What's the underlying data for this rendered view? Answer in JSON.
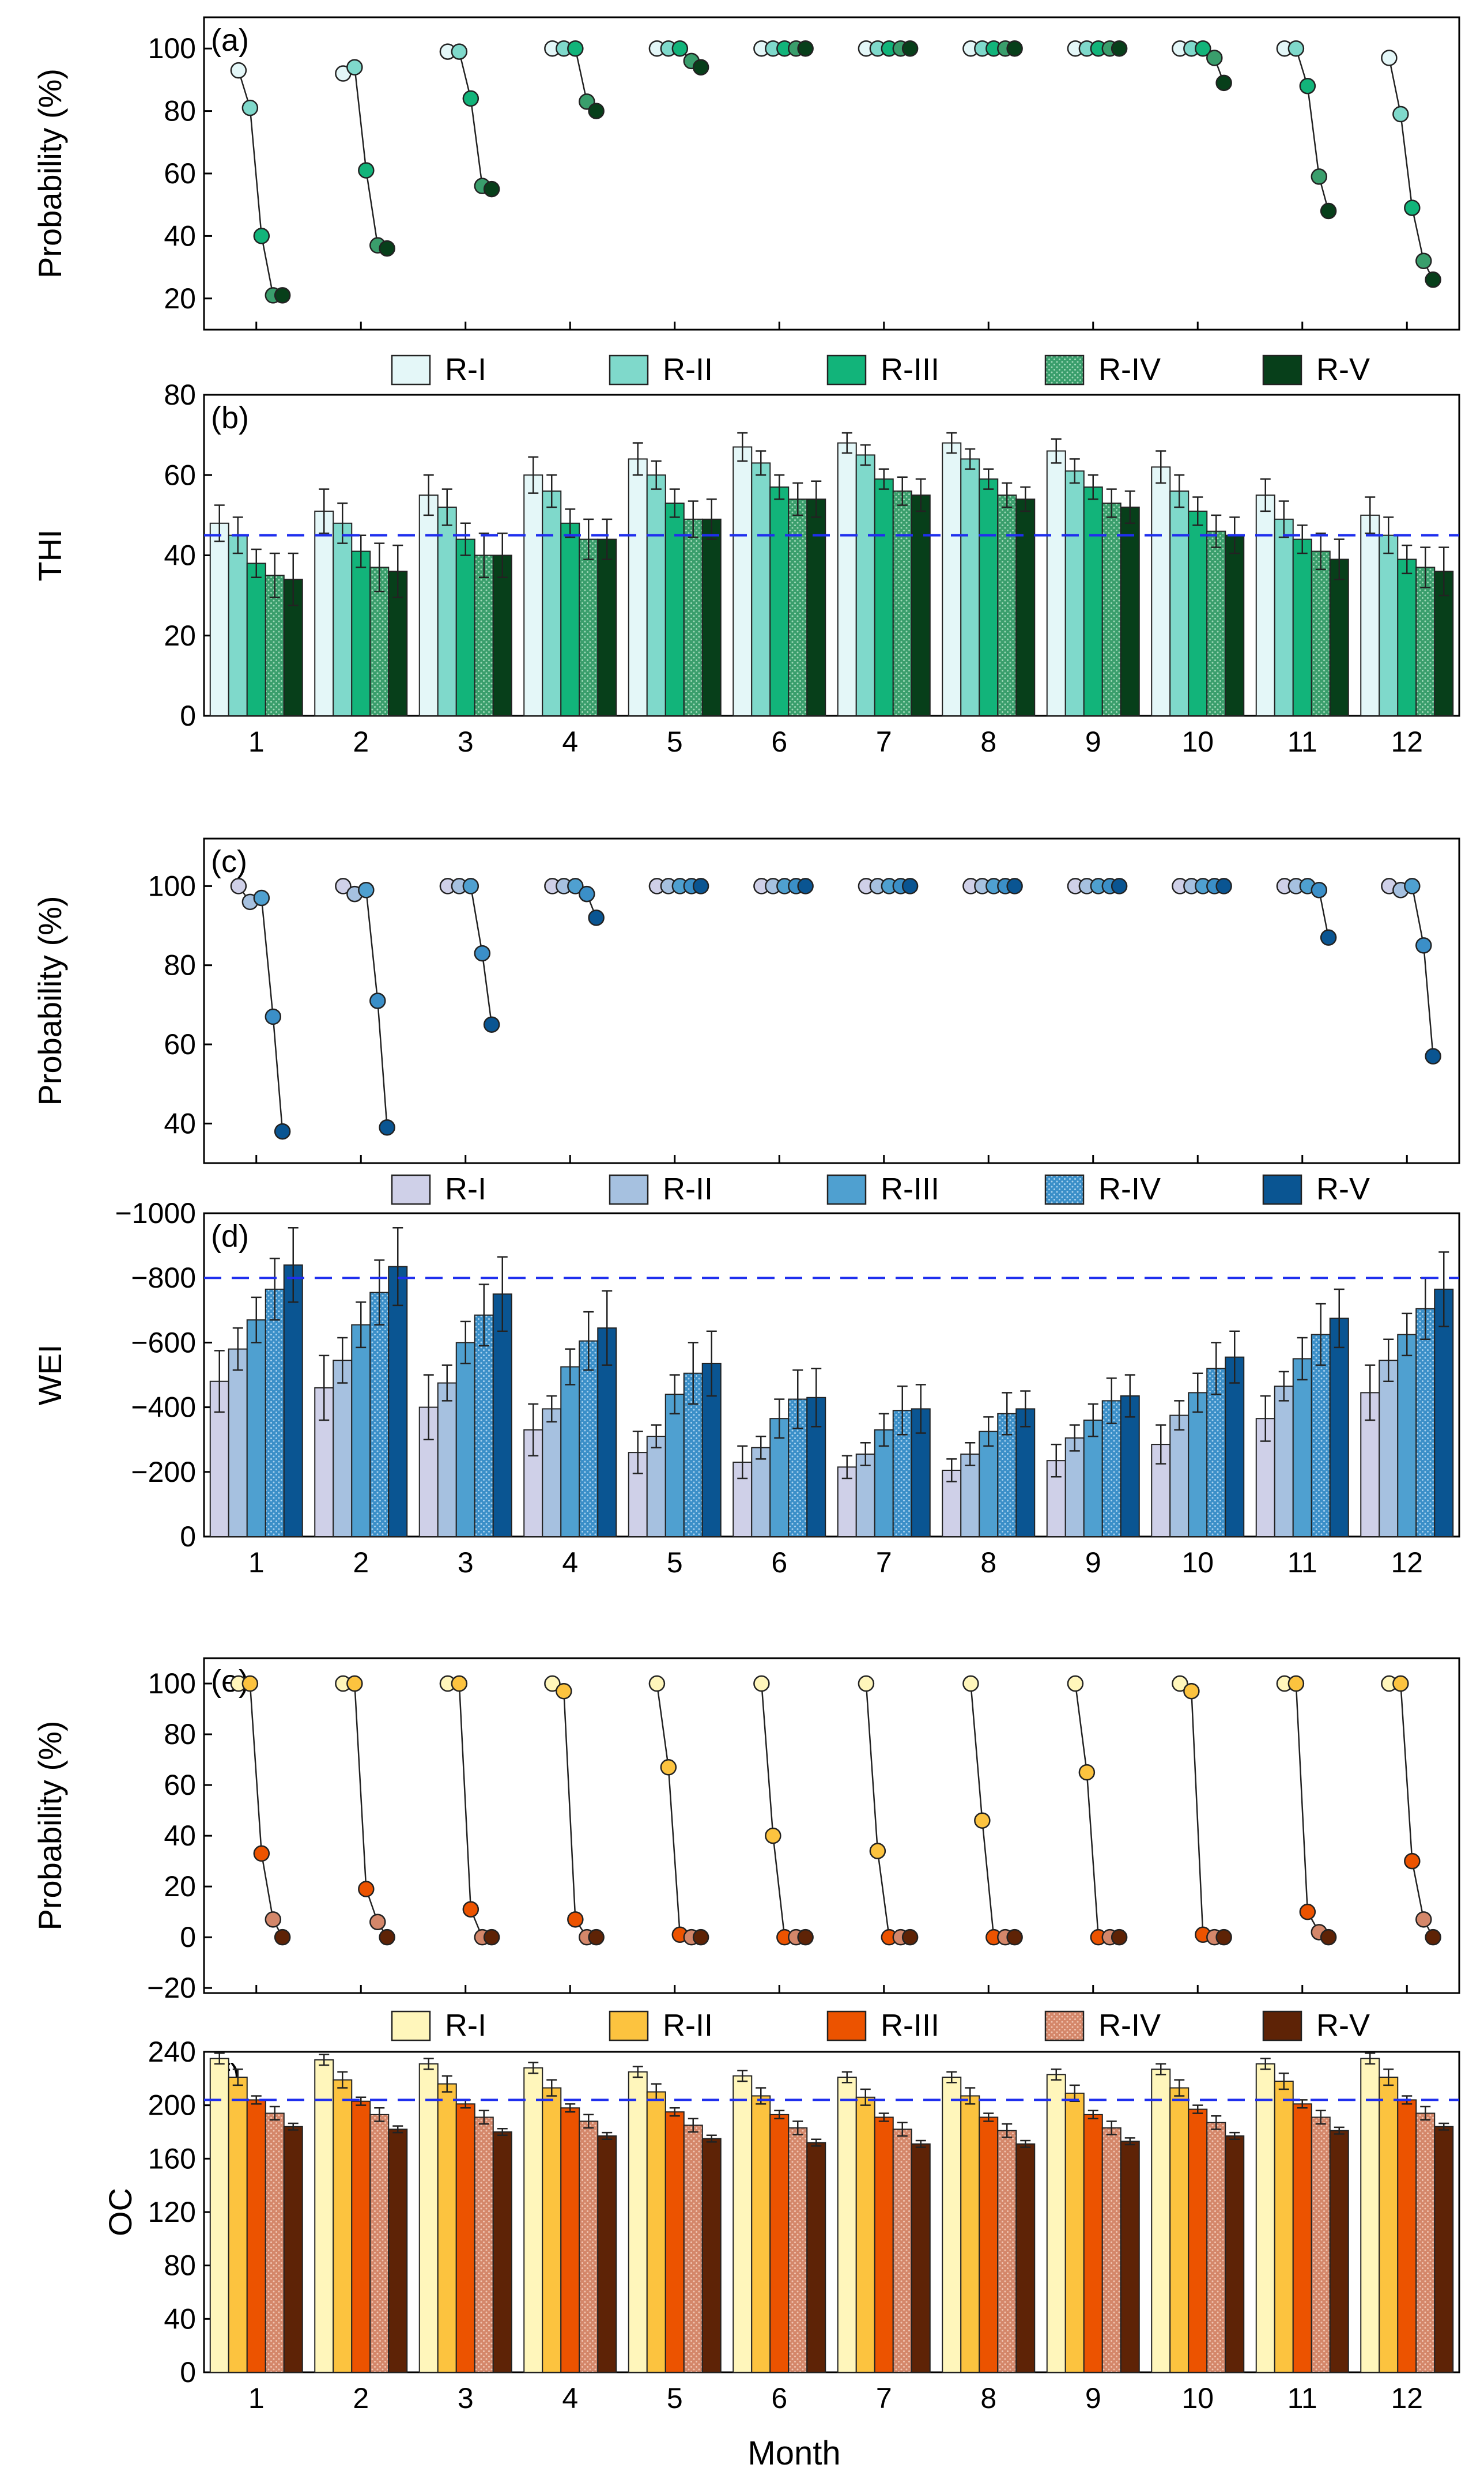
{
  "colors": {
    "thi": [
      "#e4f7f8",
      "#7fd9cb",
      "#12b47a",
      "#3a9e6c",
      "#073f1a"
    ],
    "wei": [
      "#cfd0e8",
      "#a6c1e0",
      "#4fa0d0",
      "#3b8fc8",
      "#0a5592"
    ],
    "oc": [
      "#fff6bb",
      "#fcc33f",
      "#ec5300",
      "#d4876a",
      "#5e2306"
    ],
    "threshold": "#1f2fee"
  },
  "months": [
    "1",
    "2",
    "3",
    "4",
    "5",
    "6",
    "7",
    "8",
    "9",
    "10",
    "11",
    "12"
  ],
  "legend_labels": [
    "R-I",
    "R-II",
    "R-III",
    "R-IV",
    "R-V"
  ],
  "xlabel": "Month",
  "chart_data": [
    {
      "id": "a",
      "type": "scatter",
      "panel_label": "(a)",
      "ylabel": "Probability (%)",
      "ylim": [
        10,
        110
      ],
      "yticks": [
        20,
        40,
        60,
        80,
        100
      ],
      "palette": "thi",
      "series": [
        {
          "name": "R-I",
          "values": [
            93,
            92,
            99,
            100,
            100,
            100,
            100,
            100,
            100,
            100,
            100,
            97
          ]
        },
        {
          "name": "R-II",
          "values": [
            81,
            94,
            99,
            100,
            100,
            100,
            100,
            100,
            100,
            100,
            100,
            79
          ]
        },
        {
          "name": "R-III",
          "values": [
            40,
            61,
            84,
            100,
            100,
            100,
            100,
            100,
            100,
            100,
            88,
            49
          ]
        },
        {
          "name": "R-IV",
          "values": [
            21,
            37,
            56,
            83,
            96,
            100,
            100,
            100,
            100,
            97,
            59,
            32
          ]
        },
        {
          "name": "R-V",
          "values": [
            21,
            36,
            55,
            80,
            94,
            100,
            100,
            100,
            100,
            89,
            48,
            26
          ]
        }
      ]
    },
    {
      "id": "b",
      "type": "bar",
      "panel_label": "(b)",
      "ylabel": "THI",
      "ylim": [
        0,
        80
      ],
      "yticks": [
        0,
        20,
        40,
        60,
        80
      ],
      "threshold": 45,
      "palette": "thi",
      "series": [
        {
          "name": "R-I",
          "values": [
            48,
            51,
            55,
            60,
            64,
            67,
            68,
            68,
            66,
            62,
            55,
            50
          ],
          "errors": [
            4.5,
            5.5,
            5,
            4.5,
            4,
            3.5,
            2.5,
            2.5,
            3,
            4,
            4,
            4.5
          ]
        },
        {
          "name": "R-II",
          "values": [
            45,
            48,
            52,
            56,
            60,
            63,
            65,
            64,
            61,
            56,
            49,
            45
          ],
          "errors": [
            4.5,
            5,
            4.5,
            4,
            3.5,
            3,
            2.5,
            2.5,
            3,
            4,
            4.5,
            4.5
          ]
        },
        {
          "name": "R-III",
          "values": [
            38,
            41,
            44,
            48,
            53,
            57,
            59,
            59,
            57,
            51,
            44,
            39
          ],
          "errors": [
            3.5,
            4,
            4,
            3.5,
            3.5,
            3,
            2.5,
            2.5,
            3,
            3.5,
            3.5,
            3.5
          ]
        },
        {
          "name": "R-IV",
          "values": [
            35,
            37,
            40,
            44,
            49,
            54,
            56,
            55,
            53,
            46,
            41,
            37
          ],
          "errors": [
            5.5,
            6,
            5.5,
            5,
            4.5,
            4,
            3.5,
            3,
            3.5,
            4,
            4.5,
            5
          ]
        },
        {
          "name": "R-V",
          "values": [
            34,
            36,
            40,
            44,
            49,
            54,
            55,
            54,
            52,
            45,
            39,
            36
          ],
          "errors": [
            6.5,
            6.5,
            5.5,
            5,
            5,
            4.5,
            4,
            3,
            4,
            4.5,
            5,
            6
          ]
        }
      ]
    },
    {
      "id": "c",
      "type": "scatter",
      "panel_label": "(c)",
      "ylabel": "Probability (%)",
      "ylim": [
        30,
        112
      ],
      "yticks": [
        40,
        60,
        80,
        100
      ],
      "palette": "wei",
      "series": [
        {
          "name": "R-I",
          "values": [
            100,
            100,
            100,
            100,
            100,
            100,
            100,
            100,
            100,
            100,
            100,
            100
          ]
        },
        {
          "name": "R-II",
          "values": [
            96,
            98,
            100,
            100,
            100,
            100,
            100,
            100,
            100,
            100,
            100,
            99
          ]
        },
        {
          "name": "R-III",
          "values": [
            97,
            99,
            100,
            100,
            100,
            100,
            100,
            100,
            100,
            100,
            100,
            100
          ]
        },
        {
          "name": "R-IV",
          "values": [
            67,
            71,
            83,
            98,
            100,
            100,
            100,
            100,
            100,
            100,
            99,
            85
          ]
        },
        {
          "name": "R-V",
          "values": [
            38,
            39,
            65,
            92,
            100,
            100,
            100,
            100,
            100,
            100,
            87,
            57
          ]
        }
      ]
    },
    {
      "id": "d",
      "type": "bar",
      "panel_label": "(d)",
      "ylabel": "WEI",
      "ylim": [
        0,
        -1000
      ],
      "yticks": [
        0,
        -200,
        -400,
        -600,
        -800,
        -1000
      ],
      "threshold": -800,
      "palette": "wei",
      "series": [
        {
          "name": "R-I",
          "values": [
            -480,
            -460,
            -400,
            -330,
            -260,
            -230,
            -215,
            -205,
            -235,
            -285,
            -365,
            -445
          ],
          "errors": [
            95,
            100,
            100,
            80,
            65,
            50,
            35,
            35,
            50,
            60,
            70,
            85
          ]
        },
        {
          "name": "R-II",
          "values": [
            -580,
            -545,
            -475,
            -395,
            -310,
            -275,
            -255,
            -255,
            -305,
            -375,
            -465,
            -545
          ],
          "errors": [
            65,
            70,
            55,
            40,
            35,
            35,
            35,
            35,
            40,
            45,
            45,
            65
          ]
        },
        {
          "name": "R-III",
          "values": [
            -670,
            -655,
            -600,
            -525,
            -440,
            -365,
            -330,
            -325,
            -360,
            -445,
            -550,
            -625
          ],
          "errors": [
            70,
            70,
            65,
            55,
            60,
            60,
            50,
            45,
            50,
            60,
            65,
            65
          ]
        },
        {
          "name": "R-IV",
          "values": [
            -765,
            -755,
            -685,
            -605,
            -505,
            -425,
            -390,
            -380,
            -420,
            -520,
            -625,
            -705
          ],
          "errors": [
            95,
            100,
            95,
            90,
            95,
            90,
            75,
            65,
            70,
            80,
            95,
            95
          ]
        },
        {
          "name": "R-V",
          "values": [
            -840,
            -835,
            -750,
            -645,
            -535,
            -430,
            -395,
            -395,
            -435,
            -555,
            -675,
            -765
          ],
          "errors": [
            115,
            120,
            115,
            115,
            100,
            90,
            75,
            55,
            65,
            80,
            90,
            115
          ]
        }
      ]
    },
    {
      "id": "e",
      "type": "scatter",
      "panel_label": "(e)",
      "ylabel": "Probability (%)",
      "ylim": [
        -22,
        110
      ],
      "yticks": [
        -20,
        0,
        20,
        40,
        60,
        80,
        100
      ],
      "palette": "oc",
      "series": [
        {
          "name": "R-I",
          "values": [
            100,
            100,
            100,
            100,
            100,
            100,
            100,
            100,
            100,
            100,
            100,
            100
          ]
        },
        {
          "name": "R-II",
          "values": [
            100,
            100,
            100,
            97,
            67,
            40,
            34,
            46,
            65,
            97,
            100,
            100
          ]
        },
        {
          "name": "R-III",
          "values": [
            33,
            19,
            11,
            7,
            1,
            0,
            0,
            0,
            0,
            1,
            10,
            30
          ]
        },
        {
          "name": "R-IV",
          "values": [
            7,
            6,
            0,
            0,
            0,
            0,
            0,
            0,
            0,
            0,
            2,
            7
          ]
        },
        {
          "name": "R-V",
          "values": [
            0,
            0,
            0,
            0,
            0,
            0,
            0,
            0,
            0,
            0,
            0,
            0
          ]
        }
      ]
    },
    {
      "id": "f",
      "type": "bar",
      "panel_label": "(f)",
      "ylabel": "OC",
      "ylim": [
        0,
        240
      ],
      "yticks": [
        0,
        40,
        80,
        120,
        160,
        200,
        240
      ],
      "threshold": 204,
      "palette": "oc",
      "series": [
        {
          "name": "R-I",
          "values": [
            235,
            234,
            231,
            228,
            225,
            222,
            221,
            221,
            223,
            227,
            231,
            235
          ],
          "errors": [
            4,
            4,
            4,
            4,
            4,
            4,
            4,
            4,
            4,
            4,
            4,
            4
          ]
        },
        {
          "name": "R-II",
          "values": [
            221,
            219,
            216,
            213,
            210,
            207,
            206,
            207,
            209,
            213,
            218,
            221
          ],
          "errors": [
            6,
            6,
            6,
            6,
            6,
            6,
            6,
            6,
            6,
            6,
            6,
            6
          ]
        },
        {
          "name": "R-III",
          "values": [
            204,
            203,
            201,
            198,
            195,
            193,
            191,
            191,
            193,
            197,
            201,
            204
          ],
          "errors": [
            3,
            3,
            3,
            3,
            3,
            3,
            3,
            3,
            3,
            3,
            3,
            3
          ]
        },
        {
          "name": "R-IV",
          "values": [
            194,
            193,
            191,
            188,
            185,
            183,
            182,
            181,
            183,
            187,
            191,
            194
          ],
          "errors": [
            5,
            5,
            5,
            5,
            5,
            5,
            5,
            5,
            5,
            5,
            5,
            5
          ]
        },
        {
          "name": "R-V",
          "values": [
            184,
            182,
            180,
            177,
            175,
            172,
            171,
            171,
            173,
            177,
            181,
            184
          ],
          "errors": [
            2.5,
            2.5,
            2.5,
            2.5,
            2.5,
            2.5,
            2.5,
            2.5,
            2.5,
            2.5,
            2.5,
            2.5
          ]
        }
      ]
    }
  ]
}
